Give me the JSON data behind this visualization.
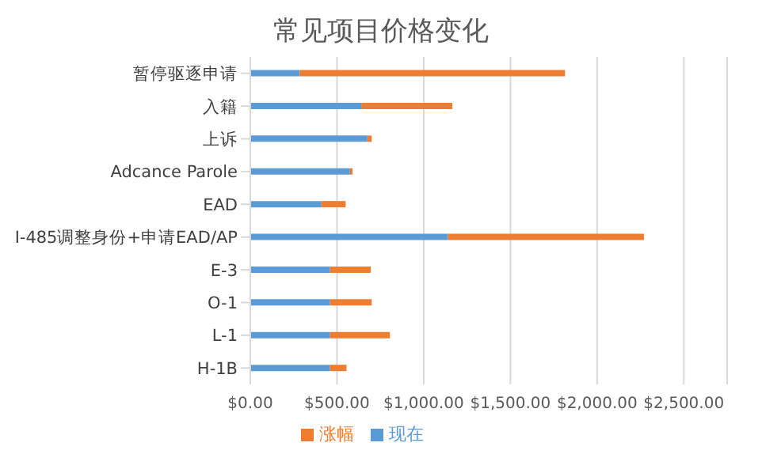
{
  "chart_data": {
    "type": "bar",
    "title": "常见项目价格变化",
    "orientation": "horizontal",
    "stacked": true,
    "categories": [
      "暂停驱逐申请",
      "入籍",
      "上诉",
      "Adcance Parole",
      "EAD",
      "I-485调整身份+申请EAD/AP",
      "E-3",
      "O-1",
      "L-1",
      "H-1B"
    ],
    "series": [
      {
        "name": "现在",
        "color": "#5b9bd5",
        "values": [
          285,
          640,
          675,
          575,
          410,
          1140,
          460,
          460,
          460,
          460
        ]
      },
      {
        "name": "涨幅",
        "color": "#ed7d31",
        "values": [
          1530,
          525,
          25,
          15,
          140,
          1130,
          235,
          240,
          345,
          95
        ]
      }
    ],
    "xlim": [
      0,
      2750
    ],
    "xticks": [
      {
        "value": 0,
        "label": "$0.00"
      },
      {
        "value": 500,
        "label": "$500.00"
      },
      {
        "value": 1000,
        "label": "$1,000.00"
      },
      {
        "value": 1500,
        "label": "$1,500.00"
      },
      {
        "value": 2000,
        "label": "$2,000.00"
      },
      {
        "value": 2500,
        "label": "$2,500.00"
      }
    ],
    "grid": "x",
    "legend": "bottom"
  }
}
